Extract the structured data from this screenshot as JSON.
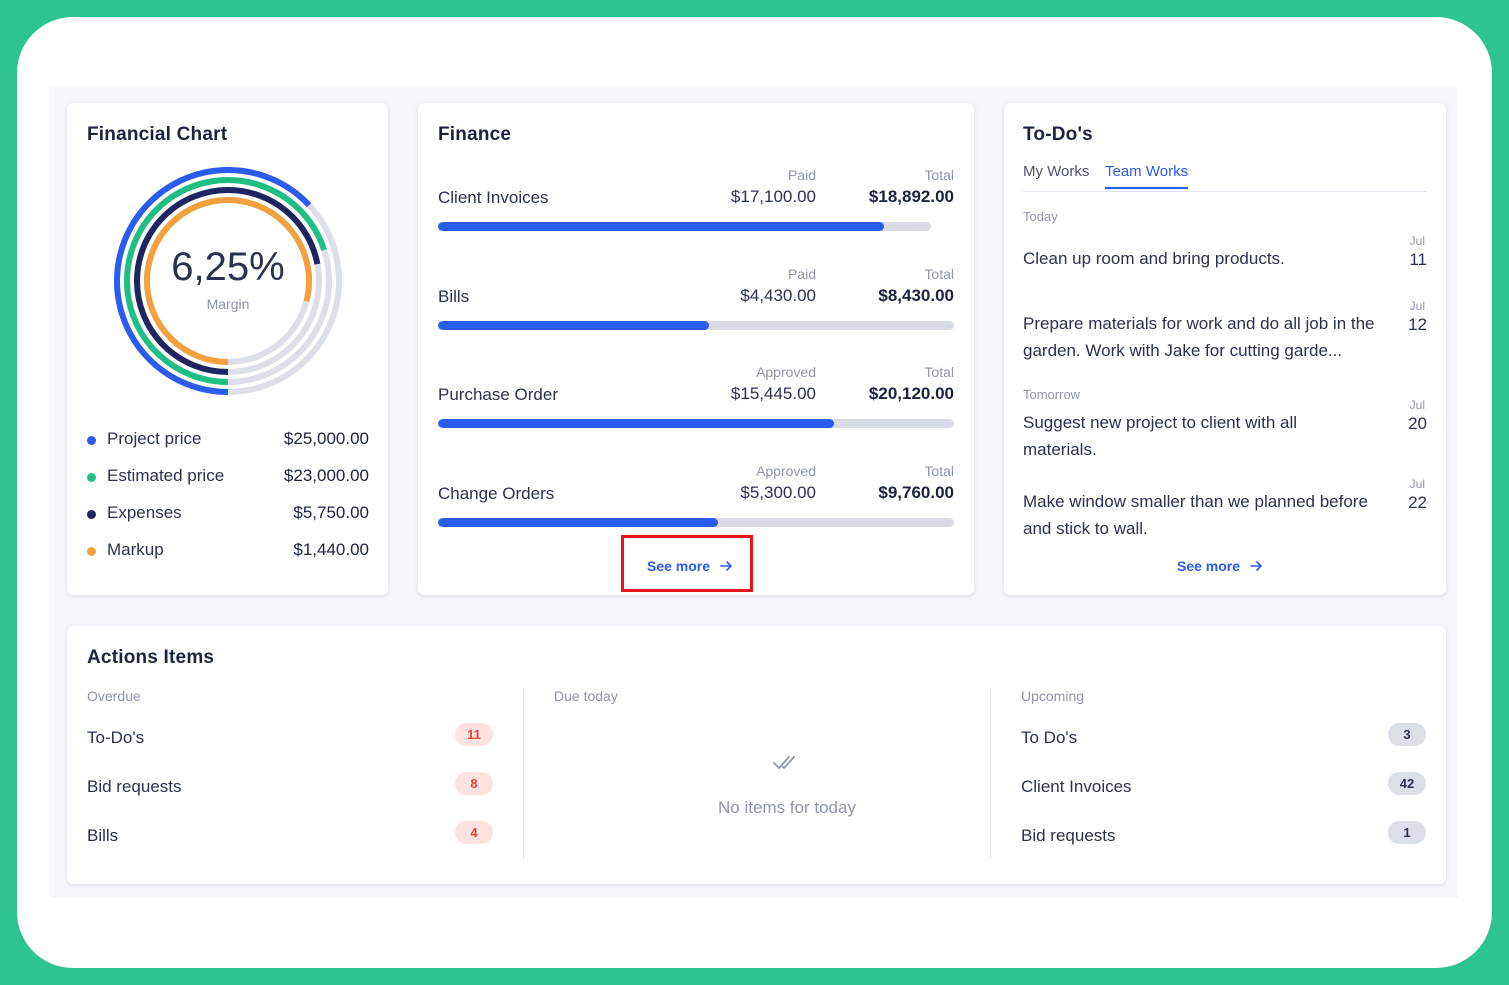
{
  "colors": {
    "accent": "#2b5cf0",
    "project": "#2b5cf0",
    "estimated": "#1fbf84",
    "expenses": "#1f2560",
    "markup": "#f2a13c",
    "track": "#dcdee8",
    "badge_red_bg": "#fde2e1",
    "badge_red_text": "#e0453a",
    "badge_gray_bg": "#dcdfe8"
  },
  "financial_chart": {
    "title": "Financial Chart",
    "center_value": "6,25%",
    "center_label": "Margin",
    "legend": [
      {
        "label": "Project price",
        "value": "$25,000.00",
        "fraction": 0.63,
        "color": "#2b5cf0"
      },
      {
        "label": "Estimated price",
        "value": "$23,000.00",
        "fraction": 0.7,
        "color": "#1fbf84"
      },
      {
        "label": "Expenses",
        "value": "$5,750.00",
        "fraction": 0.72,
        "color": "#1f2560"
      },
      {
        "label": "Markup",
        "value": "$1,440.00",
        "fraction": 0.79,
        "color": "#f2a13c"
      }
    ]
  },
  "finance": {
    "title": "Finance",
    "rows": [
      {
        "label": "Client Invoices",
        "h1": "Paid",
        "v1": "$17,100.00",
        "h2": "Total",
        "v2": "$18,892.00",
        "progress": 0.905
      },
      {
        "label": "Bills",
        "h1": "Paid",
        "v1": "$4,430.00",
        "h2": "Total",
        "v2": "$8,430.00",
        "progress": 0.525
      },
      {
        "label": "Purchase Order",
        "h1": "Approved",
        "v1": "$15,445.00",
        "h2": "Total",
        "v2": "$20,120.00",
        "progress": 0.768
      },
      {
        "label": "Change Orders",
        "h1": "Approved",
        "v1": "$5,300.00",
        "h2": "Total",
        "v2": "$9,760.00",
        "progress": 0.543
      }
    ],
    "see_more": "See more"
  },
  "todos": {
    "title": "To-Do's",
    "tabs": [
      {
        "label": "My Works",
        "active": false
      },
      {
        "label": "Team Works",
        "active": true
      }
    ],
    "sections": {
      "today": "Today",
      "tomorrow": "Tomorrow"
    },
    "items": [
      {
        "text": "Clean up room and bring products.",
        "month": "Jul",
        "day": "11"
      },
      {
        "text": "Prepare materials for work and do all job in the garden. Work with Jake for cutting garde...",
        "month": "Jul",
        "day": "12"
      },
      {
        "text": "Suggest new project to client with all materials.",
        "month": "Jul",
        "day": "20"
      },
      {
        "text": "Make window smaller than we planned before and stick to wall.",
        "month": "Jul",
        "day": "22"
      }
    ],
    "see_more": "See more"
  },
  "actions": {
    "title": "Actions Items",
    "overdue": {
      "label": "Overdue",
      "items": [
        {
          "label": "To-Do's",
          "count": "11"
        },
        {
          "label": "Bid requests",
          "count": "8"
        },
        {
          "label": "Bills",
          "count": "4"
        }
      ]
    },
    "due_today": {
      "label": "Due today",
      "empty_text": "No items for today"
    },
    "upcoming": {
      "label": "Upcoming",
      "items": [
        {
          "label": "To Do's",
          "count": "3"
        },
        {
          "label": "Client Invoices",
          "count": "42"
        },
        {
          "label": "Bid requests",
          "count": "1"
        }
      ]
    }
  }
}
